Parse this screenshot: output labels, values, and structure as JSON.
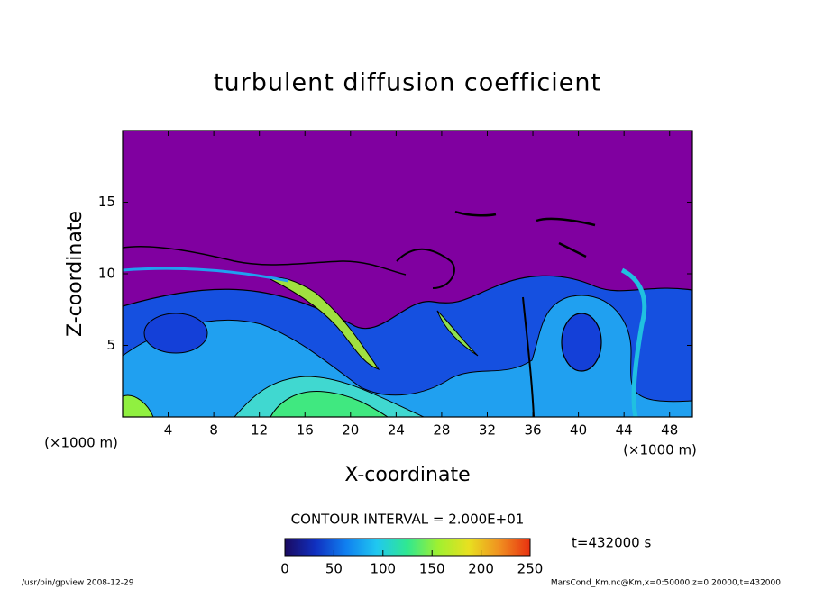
{
  "chart_data": {
    "type": "contour",
    "title": "turbulent diffusion coefficient",
    "xlabel": "X-coordinate",
    "ylabel": "Z-coordinate",
    "x_unit_label": "(×1000 m)",
    "xlim": [
      0,
      50
    ],
    "xticks": [
      4,
      8,
      12,
      16,
      20,
      24,
      28,
      32,
      36,
      40,
      44,
      48
    ],
    "ylim": [
      0,
      20
    ],
    "yticks": [
      5,
      10,
      15
    ],
    "background_color": "#8000a0",
    "contour_interval_label": "CONTOUR INTERVAL = 2.000E+01",
    "time_label": "t=432000 s",
    "colorbar": {
      "lim": [
        0,
        250
      ],
      "ticks": [
        0,
        50,
        100,
        150,
        200,
        250
      ],
      "colors": [
        "#1a0a60",
        "#1030c0",
        "#1080f0",
        "#20c8f0",
        "#30e890",
        "#a0f030",
        "#e8e020",
        "#f09020",
        "#e83010"
      ]
    },
    "footer_left": "/usr/bin/gpview  2008-12-29",
    "footer_right": "MarsCond_Km.nc@Km,x=0:50000,z=0:20000,t=432000"
  }
}
